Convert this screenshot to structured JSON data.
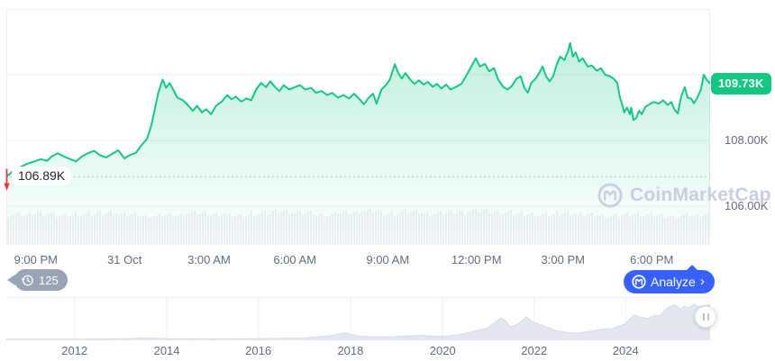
{
  "watermark": {
    "text": "CoinMarketCap"
  },
  "toolbar": {
    "history_count": "125",
    "analyze_label": "Analyze",
    "analyze_chevron": "›"
  },
  "icons": {
    "history_badge_icon": "clock-history-icon",
    "analyze_logo_icon": "coinmarketcap-logo-icon",
    "watermark_logo_icon": "coinmarketcap-logo-icon",
    "open_marker_icon": "arrow-down-icon",
    "minimap_handle_icon": "drag-handle-icon"
  },
  "colors": {
    "line_green": "#16c784",
    "badge_green": "#16c784",
    "down_red": "#ea3943",
    "analyze_blue": "#3861fb",
    "history_badge_gray": "#9aa4b7",
    "axis_text": "#616e85",
    "watermark_gray": "#c9cfe1",
    "gridline": "#edf0f4",
    "volume_bar": "#edf0f5",
    "minimap_fill": "#e3e8f0",
    "minimap_stroke": "#d5dce7"
  },
  "chart_data": [
    {
      "id": "price-intraday",
      "type": "area",
      "line_color": "#16c784",
      "last_price_label": "109.73K",
      "last_price": 109.73,
      "open_price_label": "106.89K",
      "open_price": 106.89,
      "open_direction": "down",
      "y_range": [
        104.82,
        112.0
      ],
      "gridline_values": [
        112,
        110,
        108,
        106
      ],
      "y_ticks": [
        {
          "label": "108.00K",
          "value": 108
        },
        {
          "label": "106.00K",
          "value": 106
        }
      ],
      "x_ticks": [
        {
          "label": "9:00 PM",
          "pos": 0.042
        },
        {
          "label": "31 Oct",
          "pos": 0.168
        },
        {
          "label": "3:00 AM",
          "pos": 0.288
        },
        {
          "label": "6:00 AM",
          "pos": 0.41
        },
        {
          "label": "9:00 AM",
          "pos": 0.542
        },
        {
          "label": "12:00 PM",
          "pos": 0.668
        },
        {
          "label": "3:00 PM",
          "pos": 0.791
        },
        {
          "label": "6:00 PM",
          "pos": 0.917
        }
      ],
      "points": [
        [
          0.001,
          106.92
        ],
        [
          0.009,
          107.05
        ],
        [
          0.019,
          107.18
        ],
        [
          0.029,
          107.28
        ],
        [
          0.04,
          107.36
        ],
        [
          0.049,
          107.43
        ],
        [
          0.058,
          107.38
        ],
        [
          0.065,
          107.52
        ],
        [
          0.073,
          107.61
        ],
        [
          0.081,
          107.52
        ],
        [
          0.09,
          107.44
        ],
        [
          0.099,
          107.36
        ],
        [
          0.108,
          107.52
        ],
        [
          0.117,
          107.62
        ],
        [
          0.125,
          107.68
        ],
        [
          0.133,
          107.55
        ],
        [
          0.142,
          107.48
        ],
        [
          0.151,
          107.6
        ],
        [
          0.159,
          107.7
        ],
        [
          0.168,
          107.45
        ],
        [
          0.175,
          107.55
        ],
        [
          0.184,
          107.62
        ],
        [
          0.192,
          107.85
        ],
        [
          0.2,
          108.05
        ],
        [
          0.206,
          108.45
        ],
        [
          0.211,
          108.95
        ],
        [
          0.216,
          109.45
        ],
        [
          0.222,
          109.85
        ],
        [
          0.227,
          109.6
        ],
        [
          0.232,
          109.75
        ],
        [
          0.237,
          109.55
        ],
        [
          0.243,
          109.3
        ],
        [
          0.251,
          109.22
        ],
        [
          0.259,
          109.05
        ],
        [
          0.265,
          108.9
        ],
        [
          0.271,
          109.05
        ],
        [
          0.278,
          108.85
        ],
        [
          0.284,
          108.95
        ],
        [
          0.291,
          108.8
        ],
        [
          0.298,
          109.05
        ],
        [
          0.306,
          109.18
        ],
        [
          0.314,
          109.38
        ],
        [
          0.32,
          109.25
        ],
        [
          0.326,
          109.33
        ],
        [
          0.334,
          109.18
        ],
        [
          0.341,
          109.28
        ],
        [
          0.348,
          109.22
        ],
        [
          0.355,
          109.55
        ],
        [
          0.362,
          109.75
        ],
        [
          0.369,
          109.62
        ],
        [
          0.375,
          109.8
        ],
        [
          0.382,
          109.62
        ],
        [
          0.388,
          109.5
        ],
        [
          0.394,
          109.68
        ],
        [
          0.402,
          109.55
        ],
        [
          0.41,
          109.62
        ],
        [
          0.417,
          109.68
        ],
        [
          0.425,
          109.55
        ],
        [
          0.433,
          109.6
        ],
        [
          0.44,
          109.45
        ],
        [
          0.448,
          109.5
        ],
        [
          0.456,
          109.38
        ],
        [
          0.463,
          109.45
        ],
        [
          0.471,
          109.3
        ],
        [
          0.479,
          109.38
        ],
        [
          0.487,
          109.28
        ],
        [
          0.494,
          109.42
        ],
        [
          0.502,
          109.25
        ],
        [
          0.508,
          109.1
        ],
        [
          0.515,
          109.3
        ],
        [
          0.521,
          109.42
        ],
        [
          0.526,
          109.12
        ],
        [
          0.533,
          109.55
        ],
        [
          0.539,
          109.68
        ],
        [
          0.545,
          109.85
        ],
        [
          0.552,
          110.32
        ],
        [
          0.557,
          110.05
        ],
        [
          0.562,
          109.88
        ],
        [
          0.567,
          110.05
        ],
        [
          0.574,
          109.85
        ],
        [
          0.58,
          109.72
        ],
        [
          0.586,
          109.83
        ],
        [
          0.593,
          109.7
        ],
        [
          0.599,
          109.78
        ],
        [
          0.606,
          109.63
        ],
        [
          0.612,
          109.72
        ],
        [
          0.618,
          109.58
        ],
        [
          0.625,
          109.7
        ],
        [
          0.631,
          109.55
        ],
        [
          0.639,
          109.63
        ],
        [
          0.647,
          109.73
        ],
        [
          0.653,
          109.95
        ],
        [
          0.659,
          110.18
        ],
        [
          0.667,
          110.5
        ],
        [
          0.673,
          110.25
        ],
        [
          0.68,
          110.33
        ],
        [
          0.686,
          110.1
        ],
        [
          0.693,
          110.2
        ],
        [
          0.699,
          109.85
        ],
        [
          0.706,
          109.63
        ],
        [
          0.712,
          109.55
        ],
        [
          0.718,
          109.65
        ],
        [
          0.725,
          109.88
        ],
        [
          0.731,
          109.95
        ],
        [
          0.736,
          109.6
        ],
        [
          0.741,
          109.45
        ],
        [
          0.746,
          109.75
        ],
        [
          0.752,
          109.88
        ],
        [
          0.757,
          110.05
        ],
        [
          0.762,
          110.25
        ],
        [
          0.767,
          109.95
        ],
        [
          0.772,
          109.8
        ],
        [
          0.777,
          109.95
        ],
        [
          0.782,
          110.3
        ],
        [
          0.787,
          110.55
        ],
        [
          0.793,
          110.45
        ],
        [
          0.798,
          110.7
        ],
        [
          0.801,
          110.96
        ],
        [
          0.805,
          110.55
        ],
        [
          0.809,
          110.68
        ],
        [
          0.814,
          110.4
        ],
        [
          0.819,
          110.5
        ],
        [
          0.826,
          110.25
        ],
        [
          0.832,
          110.28
        ],
        [
          0.839,
          110.12
        ],
        [
          0.845,
          110.2
        ],
        [
          0.851,
          110.0
        ],
        [
          0.858,
          109.95
        ],
        [
          0.863,
          109.88
        ],
        [
          0.868,
          109.75
        ],
        [
          0.872,
          109.3
        ],
        [
          0.876,
          109.02
        ],
        [
          0.878,
          108.85
        ],
        [
          0.882,
          109.0
        ],
        [
          0.886,
          108.8
        ],
        [
          0.888,
          109.0
        ],
        [
          0.891,
          108.62
        ],
        [
          0.895,
          108.68
        ],
        [
          0.899,
          108.9
        ],
        [
          0.903,
          108.8
        ],
        [
          0.908,
          109.02
        ],
        [
          0.914,
          109.1
        ],
        [
          0.92,
          109.17
        ],
        [
          0.927,
          109.12
        ],
        [
          0.933,
          109.22
        ],
        [
          0.94,
          109.08
        ],
        [
          0.945,
          109.17
        ],
        [
          0.949,
          108.95
        ],
        [
          0.954,
          108.82
        ],
        [
          0.959,
          109.35
        ],
        [
          0.964,
          109.62
        ],
        [
          0.968,
          109.3
        ],
        [
          0.973,
          109.27
        ],
        [
          0.977,
          109.13
        ],
        [
          0.982,
          109.3
        ],
        [
          0.987,
          109.55
        ],
        [
          0.991,
          110.0
        ],
        [
          0.995,
          109.85
        ],
        [
          1.0,
          109.73
        ]
      ],
      "volume_profile": [
        0.86,
        0.9,
        0.84,
        0.88,
        0.92,
        0.87,
        0.82,
        0.85,
        0.9,
        0.88,
        0.84,
        0.89,
        0.95,
        0.91,
        0.86,
        0.92,
        0.96,
        0.9,
        0.94,
        0.89,
        0.93,
        0.97,
        0.92,
        0.88,
        0.86,
        0.9,
        0.87,
        0.83,
        0.88,
        0.85,
        0.82,
        0.84
      ]
    },
    {
      "id": "all-time-minimap",
      "type": "area",
      "x_ticks": [
        {
          "label": "2012",
          "pos": 0.097
        },
        {
          "label": "2014",
          "pos": 0.228
        },
        {
          "label": "2016",
          "pos": 0.358
        },
        {
          "label": "2018",
          "pos": 0.489
        },
        {
          "label": "2020",
          "pos": 0.62
        },
        {
          "label": "2022",
          "pos": 0.75
        },
        {
          "label": "2024",
          "pos": 0.88
        }
      ],
      "points": [
        [
          0,
          0.004
        ],
        [
          0.032,
          0.005
        ],
        [
          0.097,
          0.006
        ],
        [
          0.162,
          0.012
        ],
        [
          0.2,
          0.035
        ],
        [
          0.227,
          0.018
        ],
        [
          0.26,
          0.014
        ],
        [
          0.293,
          0.012
        ],
        [
          0.358,
          0.016
        ],
        [
          0.423,
          0.03
        ],
        [
          0.46,
          0.09
        ],
        [
          0.482,
          0.16
        ],
        [
          0.5,
          0.08
        ],
        [
          0.521,
          0.06
        ],
        [
          0.553,
          0.07
        ],
        [
          0.586,
          0.1
        ],
        [
          0.618,
          0.07
        ],
        [
          0.645,
          0.12
        ],
        [
          0.67,
          0.22
        ],
        [
          0.684,
          0.28
        ],
        [
          0.703,
          0.53
        ],
        [
          0.71,
          0.45
        ],
        [
          0.716,
          0.3
        ],
        [
          0.727,
          0.38
        ],
        [
          0.739,
          0.55
        ],
        [
          0.749,
          0.42
        ],
        [
          0.76,
          0.36
        ],
        [
          0.781,
          0.22
        ],
        [
          0.8,
          0.16
        ],
        [
          0.814,
          0.16
        ],
        [
          0.83,
          0.2
        ],
        [
          0.846,
          0.25
        ],
        [
          0.86,
          0.26
        ],
        [
          0.879,
          0.38
        ],
        [
          0.892,
          0.6
        ],
        [
          0.9,
          0.55
        ],
        [
          0.911,
          0.52
        ],
        [
          0.92,
          0.58
        ],
        [
          0.93,
          0.6
        ],
        [
          0.937,
          0.75
        ],
        [
          0.944,
          0.82
        ],
        [
          0.95,
          0.85
        ],
        [
          0.958,
          0.75
        ],
        [
          0.963,
          0.82
        ],
        [
          0.97,
          0.78
        ],
        [
          0.977,
          0.87
        ],
        [
          0.983,
          0.8
        ],
        [
          0.99,
          0.83
        ],
        [
          1.0,
          0.85
        ]
      ]
    }
  ]
}
